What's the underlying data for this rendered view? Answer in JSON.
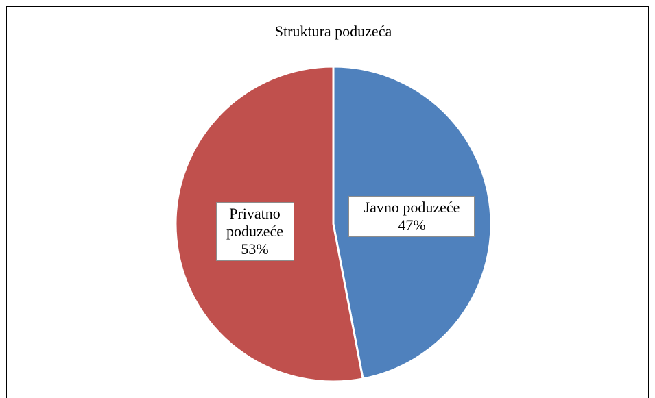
{
  "chart_data": {
    "type": "pie",
    "title": "Struktura poduzeća",
    "categories": [
      "Javno poduzeće",
      "Privatno poduzeće"
    ],
    "values": [
      47,
      53
    ],
    "value_labels": [
      "47%",
      "53%"
    ],
    "colors": [
      "#4f81bd",
      "#c0504d"
    ]
  }
}
